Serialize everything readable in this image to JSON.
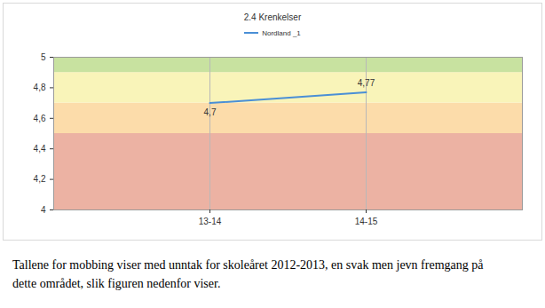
{
  "chart_data": {
    "type": "line",
    "title": "2.4 Krenkelser",
    "categories": [
      null,
      "13-14",
      "14-15",
      null
    ],
    "series": [
      {
        "name": "Nordland _1",
        "color": "#4a8fd6",
        "values": [
          null,
          4.7,
          4.77,
          null
        ],
        "value_labels": [
          null,
          "4,7",
          "4,77",
          null
        ]
      }
    ],
    "ylim": [
      4,
      5
    ],
    "yticks": [
      4,
      {
        "value": 4.2,
        "label": "4,2"
      },
      {
        "value": 4.4,
        "label": "4,4"
      },
      {
        "value": 4.6,
        "label": "4,6"
      },
      {
        "value": 4.8,
        "label": "4,8"
      },
      5
    ],
    "grid": true,
    "legend": "top",
    "data_labels": true,
    "bands": [
      {
        "from": 4,
        "to": 4.5,
        "color": "#ecb2a3"
      },
      {
        "from": 4.5,
        "to": 4.7,
        "color": "#fcdcaa"
      },
      {
        "from": 4.7,
        "to": 4.9,
        "color": "#f9f4b9"
      },
      {
        "from": 4.9,
        "to": 5,
        "color": "#c8e2a0"
      }
    ],
    "caption": "Tallene for mobbing viser med unntak for skoleåret 2012-2013, en svak men jevn fremgang på dette området, slik figuren nedenfor viser."
  }
}
